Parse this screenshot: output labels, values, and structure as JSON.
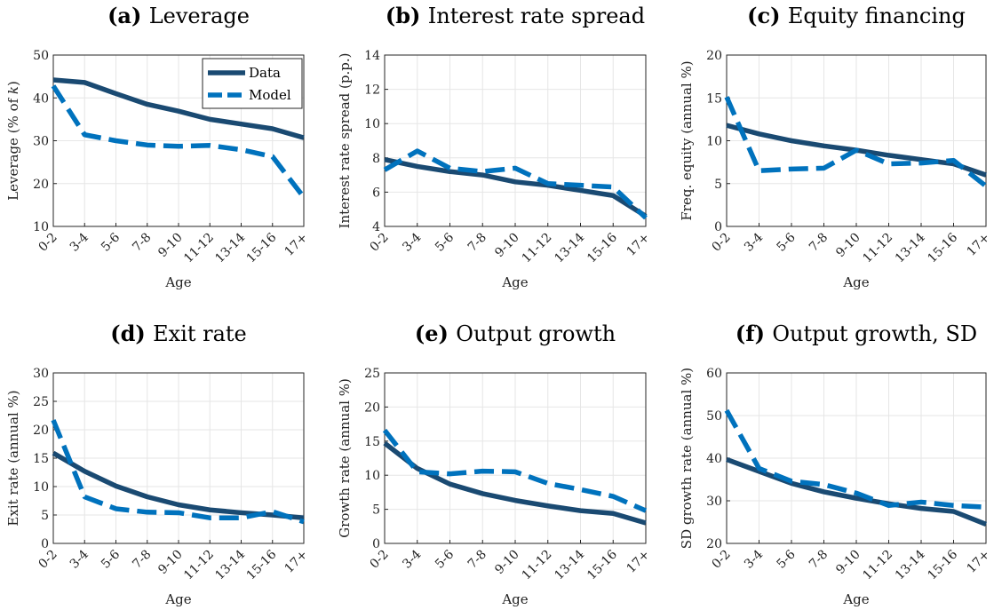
{
  "colors": {
    "data": "#1a4a72",
    "model": "#0072bd",
    "grid": "#e6e6e6",
    "axis": "#262626"
  },
  "legend": {
    "placement": "top-right",
    "panel": 0,
    "entries": [
      "Data",
      "Model"
    ]
  },
  "chart_data": [
    {
      "type": "line",
      "tag": "(a)",
      "title": "Leverage",
      "xlabel": "Age",
      "ylabel": "Leverage (% of k)",
      "categories": [
        "0-2",
        "3-4",
        "5-6",
        "7-8",
        "9-10",
        "11-12",
        "13-14",
        "15-16",
        "17+"
      ],
      "ylim": [
        10,
        50
      ],
      "yticks": [
        10,
        20,
        30,
        40,
        50
      ],
      "grid": true,
      "series": [
        {
          "name": "Data",
          "style": "solid",
          "values": [
            44.2,
            43.6,
            41.0,
            38.5,
            36.9,
            35.0,
            33.9,
            32.8,
            30.7
          ]
        },
        {
          "name": "Model",
          "style": "dashed",
          "values": [
            42.8,
            31.4,
            30.0,
            29.0,
            28.7,
            28.9,
            27.9,
            26.3,
            16.8
          ]
        }
      ]
    },
    {
      "type": "line",
      "tag": "(b)",
      "title": "Interest rate spread",
      "xlabel": "Age",
      "ylabel": "Interest rate spread (p.p.)",
      "categories": [
        "0-2",
        "3-4",
        "5-6",
        "7-8",
        "9-10",
        "11-12",
        "13-14",
        "15-16",
        "17+"
      ],
      "ylim": [
        4,
        14
      ],
      "yticks": [
        4,
        6,
        8,
        10,
        12,
        14
      ],
      "grid": true,
      "series": [
        {
          "name": "Data",
          "style": "solid",
          "values": [
            7.9,
            7.5,
            7.2,
            7.0,
            6.6,
            6.4,
            6.1,
            5.8,
            4.6
          ]
        },
        {
          "name": "Model",
          "style": "dashed",
          "values": [
            7.3,
            8.4,
            7.4,
            7.2,
            7.4,
            6.5,
            6.4,
            6.3,
            4.5
          ]
        }
      ]
    },
    {
      "type": "line",
      "tag": "(c)",
      "title": "Equity financing",
      "xlabel": "Age",
      "ylabel": "Freq. equity (annual %)",
      "categories": [
        "0-2",
        "3-4",
        "5-6",
        "7-8",
        "9-10",
        "11-12",
        "13-14",
        "15-16",
        "17+"
      ],
      "ylim": [
        0,
        20
      ],
      "yticks": [
        0,
        5,
        10,
        15,
        20
      ],
      "grid": true,
      "series": [
        {
          "name": "Data",
          "style": "solid",
          "values": [
            11.8,
            10.8,
            10.0,
            9.4,
            8.9,
            8.3,
            7.8,
            7.3,
            6.0
          ]
        },
        {
          "name": "Model",
          "style": "dashed",
          "values": [
            15.1,
            6.5,
            6.7,
            6.8,
            8.9,
            7.3,
            7.4,
            7.7,
            4.7
          ]
        }
      ]
    },
    {
      "type": "line",
      "tag": "(d)",
      "title": "Exit rate",
      "xlabel": "Age",
      "ylabel": "Exit rate (annual %)",
      "categories": [
        "0-2",
        "3-4",
        "5-6",
        "7-8",
        "9-10",
        "11-12",
        "13-14",
        "15-16",
        "17+"
      ],
      "ylim": [
        0,
        30
      ],
      "yticks": [
        0,
        5,
        10,
        15,
        20,
        25,
        30
      ],
      "grid": true,
      "series": [
        {
          "name": "Data",
          "style": "solid",
          "values": [
            15.9,
            12.7,
            10.1,
            8.2,
            6.8,
            5.9,
            5.4,
            5.0,
            4.5
          ]
        },
        {
          "name": "Model",
          "style": "dashed",
          "values": [
            21.7,
            8.2,
            6.1,
            5.5,
            5.4,
            4.5,
            4.5,
            5.6,
            3.8
          ]
        }
      ]
    },
    {
      "type": "line",
      "tag": "(e)",
      "title": "Output growth",
      "xlabel": "Age",
      "ylabel": "Growth rate (annual %)",
      "categories": [
        "0-2",
        "3-4",
        "5-6",
        "7-8",
        "9-10",
        "11-12",
        "13-14",
        "15-16",
        "17+"
      ],
      "ylim": [
        0,
        25
      ],
      "yticks": [
        0,
        5,
        10,
        15,
        20,
        25
      ],
      "grid": true,
      "series": [
        {
          "name": "Data",
          "style": "solid",
          "values": [
            14.7,
            11.0,
            8.7,
            7.3,
            6.3,
            5.5,
            4.8,
            4.4,
            3.0
          ]
        },
        {
          "name": "Model",
          "style": "dashed",
          "values": [
            16.6,
            10.5,
            10.2,
            10.6,
            10.5,
            8.8,
            7.9,
            6.9,
            4.8
          ]
        }
      ]
    },
    {
      "type": "line",
      "tag": "(f)",
      "title": "Output growth, SD",
      "xlabel": "Age",
      "ylabel": "SD growth rate (annual %)",
      "categories": [
        "0-2",
        "3-4",
        "5-6",
        "7-8",
        "9-10",
        "11-12",
        "13-14",
        "15-16",
        "17+"
      ],
      "ylim": [
        20,
        60
      ],
      "yticks": [
        20,
        30,
        40,
        50,
        60
      ],
      "grid": true,
      "series": [
        {
          "name": "Data",
          "style": "solid",
          "values": [
            39.7,
            36.9,
            34.1,
            32.1,
            30.6,
            29.3,
            28.2,
            27.5,
            24.5
          ]
        },
        {
          "name": "Model",
          "style": "dashed",
          "values": [
            51.2,
            37.6,
            34.6,
            33.8,
            31.8,
            28.9,
            29.7,
            28.9,
            28.5
          ]
        }
      ]
    }
  ]
}
